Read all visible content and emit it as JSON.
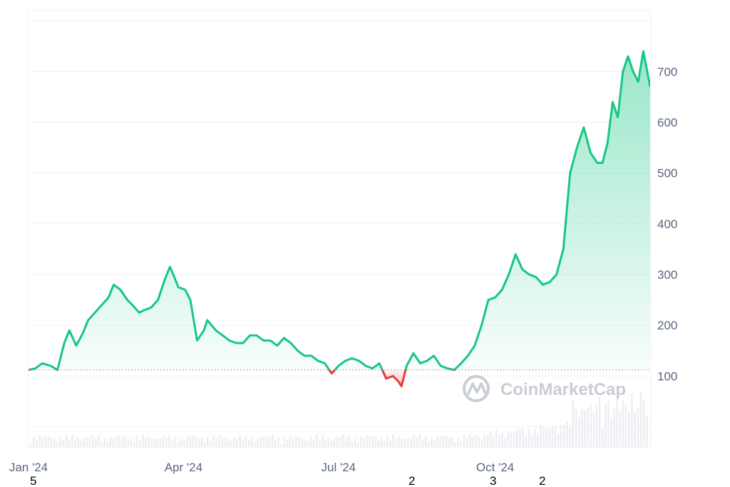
{
  "chart_data": {
    "type": "area",
    "title": "",
    "xlabel": "",
    "ylabel": "",
    "x_start": "2024-01-01",
    "x_end": "2024-12-31",
    "xlim": [
      "2024-01-01",
      "2024-12-31"
    ],
    "ylim": [
      -40,
      820
    ],
    "x_tick_labels": [
      "Jan '24",
      "Apr '24",
      "Jul '24",
      "Oct '24"
    ],
    "x_tick_dates": [
      "2024-01-01",
      "2024-04-01",
      "2024-07-01",
      "2024-10-01"
    ],
    "y_ticks": [
      100,
      200,
      300,
      400,
      500,
      600,
      700
    ],
    "y_tick_labels": [
      "100",
      "200",
      "300",
      "400",
      "500",
      "600",
      "700"
    ],
    "reference_value": 112,
    "reference_line_style": "dotted",
    "y_axis_side": "right",
    "grid": true,
    "up_color": "#16c784",
    "down_color": "#ea3943",
    "watermark": "CoinMarketCap",
    "extra_labels": [
      "5",
      "2",
      "3",
      "2"
    ],
    "series": [
      {
        "x": [
          "2024-01-01",
          "2024-01-05",
          "2024-01-09",
          "2024-01-14",
          "2024-01-18",
          "2024-01-22",
          "2024-01-25",
          "2024-01-29",
          "2024-02-02",
          "2024-02-05",
          "2024-02-09",
          "2024-02-13",
          "2024-02-17",
          "2024-02-20",
          "2024-02-24",
          "2024-02-28",
          "2024-03-02",
          "2024-03-06",
          "2024-03-09",
          "2024-03-13",
          "2024-03-17",
          "2024-03-21",
          "2024-03-24",
          "2024-03-26",
          "2024-03-29",
          "2024-04-02",
          "2024-04-05",
          "2024-04-09",
          "2024-04-13",
          "2024-04-15",
          "2024-04-20",
          "2024-04-24",
          "2024-04-28",
          "2024-05-02",
          "2024-05-06",
          "2024-05-10",
          "2024-05-14",
          "2024-05-18",
          "2024-05-22",
          "2024-05-26",
          "2024-05-30",
          "2024-06-03",
          "2024-06-07",
          "2024-06-11",
          "2024-06-15",
          "2024-06-19",
          "2024-06-23",
          "2024-06-27",
          "2024-07-01",
          "2024-07-05",
          "2024-07-09",
          "2024-07-13",
          "2024-07-17",
          "2024-07-21",
          "2024-07-25",
          "2024-07-29",
          "2024-08-02",
          "2024-08-05",
          "2024-08-07",
          "2024-08-10",
          "2024-08-14",
          "2024-08-18",
          "2024-08-22",
          "2024-08-26",
          "2024-08-30",
          "2024-09-03",
          "2024-09-07",
          "2024-09-11",
          "2024-09-15",
          "2024-09-19",
          "2024-09-23",
          "2024-09-27",
          "2024-10-01",
          "2024-10-05",
          "2024-10-09",
          "2024-10-13",
          "2024-10-17",
          "2024-10-21",
          "2024-10-25",
          "2024-10-29",
          "2024-11-02",
          "2024-11-06",
          "2024-11-10",
          "2024-11-14",
          "2024-11-18",
          "2024-11-22",
          "2024-11-26",
          "2024-11-30",
          "2024-12-03",
          "2024-12-06",
          "2024-12-09",
          "2024-12-12",
          "2024-12-15",
          "2024-12-18",
          "2024-12-21",
          "2024-12-24",
          "2024-12-27",
          "2024-12-31"
        ],
        "values": [
          112,
          115,
          125,
          120,
          112,
          165,
          190,
          160,
          185,
          210,
          225,
          240,
          255,
          280,
          270,
          250,
          240,
          225,
          230,
          235,
          250,
          290,
          315,
          300,
          275,
          270,
          250,
          170,
          190,
          210,
          190,
          180,
          170,
          165,
          165,
          180,
          180,
          170,
          170,
          160,
          175,
          165,
          150,
          140,
          140,
          130,
          125,
          105,
          120,
          130,
          135,
          130,
          120,
          115,
          125,
          95,
          100,
          90,
          80,
          120,
          145,
          125,
          130,
          140,
          120,
          115,
          112,
          125,
          140,
          160,
          200,
          250,
          255,
          270,
          300,
          340,
          310,
          300,
          295,
          280,
          285,
          300,
          350,
          500,
          550,
          590,
          540,
          520,
          520,
          560,
          640,
          610,
          700,
          730,
          700,
          680,
          740,
          670
        ]
      }
    ]
  }
}
